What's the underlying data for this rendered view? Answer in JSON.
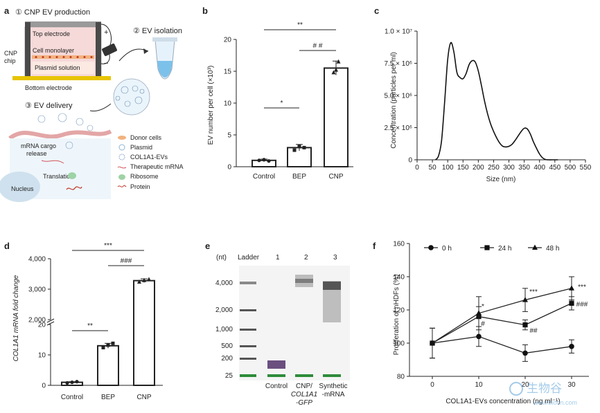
{
  "panels": {
    "a": {
      "label": "a",
      "step1": "① CNP EV production",
      "top_electrode": "Top electrode",
      "cell_monolayer": "Cell monolayer",
      "cnp_chip_1": "CNP",
      "cnp_chip_2": "chip",
      "plasmid_solution": "Plasmid solution",
      "bottom_electrode": "Bottom electrode",
      "plus": "+",
      "minus": "−",
      "step2": "② EV  isolation",
      "step3": "③ EV delivery",
      "mrna_release_1": "mRNA cargo",
      "mrna_release_2": "release",
      "translation": "Translation",
      "nucleus": "Nucleus",
      "legend": [
        "Donor cells",
        "Plasmid",
        "COL1A1-EVs",
        "Therapeutic mRNA",
        "Ribosome",
        "Protein"
      ],
      "colors": {
        "electrode": "#9a9a9a",
        "chip": "#f6d9d9",
        "bottom": "#e8c400",
        "solution": "#fbe9e2"
      }
    },
    "b": {
      "label": "b"
    },
    "c": {
      "label": "c"
    },
    "d": {
      "label": "d"
    },
    "e": {
      "label": "e",
      "nt": "(nt)",
      "ladder": "Ladder",
      "lanes": [
        "1",
        "2",
        "3"
      ],
      "sizes": [
        "4,000",
        "2,000",
        "1,000",
        "500",
        "200",
        "25"
      ],
      "bottom_labels": [
        "Control",
        "CNP/",
        "COL1A1",
        "-GFP",
        "Synthetic",
        "-mRNA"
      ]
    },
    "f": {
      "label": "f"
    }
  },
  "watermark": {
    "text": "生物谷",
    "url": "www.bioon.com"
  },
  "chart_data": [
    {
      "panel": "b",
      "type": "bar",
      "ylabel": "EV number per cell (×10³)",
      "ylim": [
        0,
        20
      ],
      "yticks": [
        0,
        5,
        10,
        15,
        20
      ],
      "categories": [
        "Control",
        "BEP",
        "CNP"
      ],
      "values": [
        1,
        3,
        15.5
      ],
      "errors": [
        0.2,
        0.5,
        1.1
      ],
      "points": [
        [
          1.0,
          1.1,
          0.9
        ],
        [
          2.6,
          3.2,
          3.0
        ],
        [
          14.8,
          15.2,
          16.5
        ]
      ],
      "annotations": [
        {
          "text": "*",
          "from": 0,
          "to": 1
        },
        {
          "text": "# #",
          "from": 1,
          "to": 2
        },
        {
          "text": "**",
          "from": 0,
          "to": 2
        }
      ]
    },
    {
      "panel": "c",
      "type": "line",
      "xlabel": "Size (nm)",
      "ylabel": "Concentration (particles per ml)",
      "xlim": [
        0,
        550
      ],
      "ylim": [
        0,
        10000000
      ],
      "xticks": [
        0,
        50,
        100,
        150,
        200,
        250,
        300,
        350,
        400,
        450,
        500,
        550
      ],
      "yticks": [
        "0",
        "2.5 × 10⁶",
        "5.0 × 10⁶",
        "7.5 × 10⁶",
        "1.0 × 10⁷"
      ],
      "x": [
        60,
        70,
        80,
        90,
        100,
        110,
        120,
        130,
        140,
        150,
        160,
        170,
        180,
        190,
        200,
        210,
        220,
        230,
        240,
        250,
        260,
        270,
        280,
        290,
        300,
        310,
        320,
        330,
        340,
        350,
        360,
        370,
        380,
        390,
        400,
        410,
        420,
        430,
        440,
        450,
        460
      ],
      "y": [
        0,
        300000,
        1500000,
        4500000,
        7800000,
        9100000,
        8400000,
        6800000,
        6400000,
        6300000,
        6700000,
        7400000,
        7700000,
        7600000,
        6900000,
        5800000,
        4600000,
        3600000,
        2800000,
        2200000,
        1700000,
        1300000,
        1050000,
        1000000,
        1050000,
        1200000,
        1500000,
        1850000,
        2200000,
        2450000,
        2400000,
        2000000,
        1400000,
        900000,
        450000,
        150000,
        20000,
        0,
        0,
        0,
        0
      ]
    },
    {
      "panel": "d",
      "type": "bar",
      "ylabel": "COL1A1 mRNA fold change",
      "categories": [
        "Control",
        "BEP",
        "CNP"
      ],
      "yticks_upper": [
        "2,000",
        "3,000",
        "4,000"
      ],
      "yticks_lower": [
        "0",
        "10",
        "20"
      ],
      "values": [
        1,
        13,
        3280
      ],
      "errors": [
        0.2,
        0.8,
        60
      ],
      "points": [
        [
          0.8,
          1.0,
          1.2
        ],
        [
          12.4,
          13.2,
          13.8
        ],
        [
          3240,
          3290,
          3320
        ]
      ],
      "annotations": [
        {
          "text": "**",
          "from": 0,
          "to": 1
        },
        {
          "text": "###",
          "from": 1,
          "to": 2
        },
        {
          "text": "***",
          "from": 0,
          "to": 2
        }
      ]
    },
    {
      "panel": "f",
      "type": "line",
      "xlabel": "COL1A1-EVs concentration (ng ml⁻¹)",
      "ylabel": "Proliferation of nHDFs (%)",
      "ylim": [
        80,
        160
      ],
      "yticks": [
        80,
        100,
        120,
        140,
        160
      ],
      "x": [
        0,
        10,
        20,
        30
      ],
      "xticks": [
        "0",
        "10",
        "20",
        "30"
      ],
      "series": [
        {
          "name": "0 h",
          "marker": "circle",
          "values": [
            100,
            104,
            94,
            98
          ],
          "errors": [
            9,
            6,
            5,
            4
          ]
        },
        {
          "name": "24 h",
          "marker": "square",
          "values": [
            100,
            116,
            111,
            124
          ],
          "errors": [
            9,
            6,
            3,
            4
          ]
        },
        {
          "name": "48 h",
          "marker": "triangle",
          "values": [
            100,
            118,
            126,
            133
          ],
          "errors": [
            9,
            10,
            7,
            7
          ]
        }
      ],
      "annotations": [
        "*",
        "***",
        "***",
        "#",
        "##",
        "###"
      ]
    }
  ]
}
